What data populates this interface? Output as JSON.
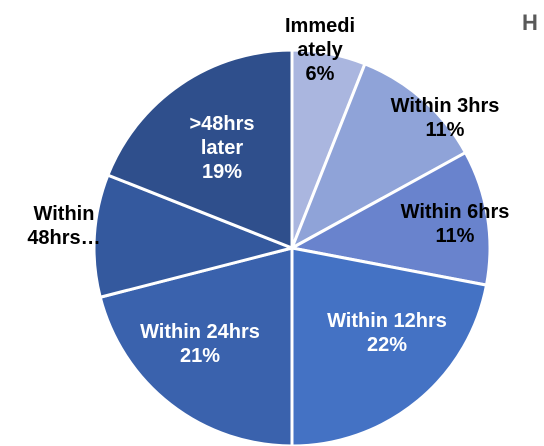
{
  "chart_data": {
    "type": "pie",
    "title": "H",
    "slices": [
      {
        "label": "Immedi ately",
        "value": 6,
        "display": "6%",
        "color": "#aab6df"
      },
      {
        "label": "Within 3hrs",
        "value": 11,
        "display": "11%",
        "color": "#8fa3d8"
      },
      {
        "label": "Within 6hrs",
        "value": 11,
        "display": "11%",
        "color": "#6983cd"
      },
      {
        "label": "Within 12hrs",
        "value": 22,
        "display": "22%",
        "color": "#4472c4"
      },
      {
        "label": "Within 24hrs",
        "value": 21,
        "display": "21%",
        "color": "#3a62ad"
      },
      {
        "label": "Within 48hrs…",
        "value": 10,
        "display": "",
        "color": "#34599e"
      },
      {
        "label": ">48hrs later",
        "value": 19,
        "display": "19%",
        "color": "#2f4f8c"
      }
    ]
  }
}
